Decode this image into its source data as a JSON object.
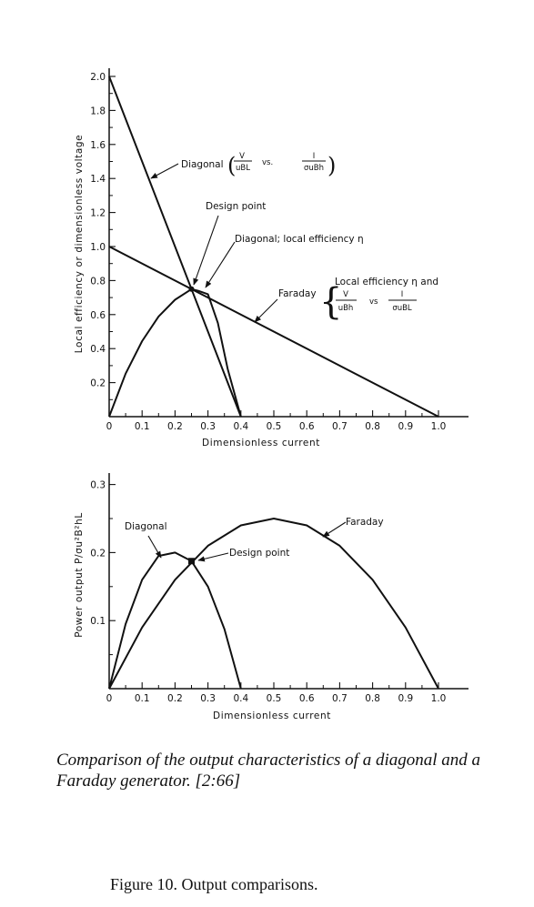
{
  "chart_data": [
    {
      "type": "line",
      "xlabel": "Dimensionless current",
      "ylabel": "Local efficiency or dimensionless voltage",
      "xlim": [
        0,
        1.0
      ],
      "ylim": [
        0,
        2.0
      ],
      "xticks": [
        "0",
        "0.1",
        "0.2",
        "0.3",
        "0.4",
        "0.5",
        "0.6",
        "0.7",
        "0.8",
        "0.9",
        "1.0"
      ],
      "yticks": [
        "0.2",
        "0.4",
        "0.6",
        "0.8",
        "1.0",
        "1.2",
        "1.4",
        "1.6",
        "1.8",
        "2.0"
      ],
      "grid": false,
      "series": [
        {
          "name": "Diagonal (V/uBL vs I/σuBh)",
          "x": [
            0,
            0.4
          ],
          "y": [
            2.0,
            0.0
          ]
        },
        {
          "name": "Faraday",
          "x": [
            0,
            1.0
          ],
          "y": [
            1.0,
            0.0
          ]
        },
        {
          "name": "Diagonal; local efficiency η",
          "x": [
            0,
            0.05,
            0.1,
            0.15,
            0.2,
            0.25,
            0.27,
            0.3,
            0.33,
            0.36,
            0.4
          ],
          "y": [
            0,
            0.253,
            0.444,
            0.589,
            0.687,
            0.75,
            0.74,
            0.72,
            0.55,
            0.28,
            0
          ]
        }
      ],
      "annotations": {
        "diagonal_label": "Diagonal",
        "diagonal_frac1_num": "V",
        "diagonal_frac1_den": "uBL",
        "diagonal_vs": "vs.",
        "diagonal_frac2_num": "I",
        "diagonal_frac2_den": "σuBh",
        "design_point": "Design point",
        "diagonal_eff": "Diagonal; local efficiency η",
        "faraday": "Faraday",
        "faraday_line1": "Local efficiency η and",
        "faraday_frac1_num": "V",
        "faraday_frac1_den": "uBh",
        "faraday_vs": "vs",
        "faraday_frac2_num": "I",
        "faraday_frac2_den": "σuBL"
      }
    },
    {
      "type": "line",
      "xlabel": "Dimensionless current",
      "ylabel": "Power output P/σu²B²hL",
      "xlim": [
        0,
        1.0
      ],
      "ylim": [
        0,
        0.3
      ],
      "xticks": [
        "0",
        "0.1",
        "0.2",
        "0.3",
        "0.4",
        "0.5",
        "0.6",
        "0.7",
        "0.8",
        "0.9",
        "1.0"
      ],
      "yticks": [
        "0.1",
        "0.2",
        "0.3"
      ],
      "grid": false,
      "series": [
        {
          "name": "Diagonal",
          "x": [
            0,
            0.05,
            0.1,
            0.15,
            0.2,
            0.25,
            0.3,
            0.35,
            0.4
          ],
          "y": [
            0,
            0.095,
            0.16,
            0.195,
            0.2,
            0.1875,
            0.15,
            0.0875,
            0
          ]
        },
        {
          "name": "Faraday",
          "x": [
            0,
            0.1,
            0.2,
            0.3,
            0.4,
            0.5,
            0.6,
            0.7,
            0.8,
            0.9,
            1.0
          ],
          "y": [
            0,
            0.09,
            0.16,
            0.21,
            0.24,
            0.25,
            0.24,
            0.21,
            0.16,
            0.09,
            0
          ]
        }
      ],
      "annotations": {
        "diagonal": "Diagonal",
        "faraday": "Faraday",
        "design_point": "Design point"
      }
    }
  ],
  "caption": "Comparison of the output characteristics of a diagonal and a Faraday generator. [2:66]",
  "figure_title": "Figure 10.  Output comparisons.",
  "colors": {
    "ink": "#111111",
    "background": "#ffffff"
  }
}
